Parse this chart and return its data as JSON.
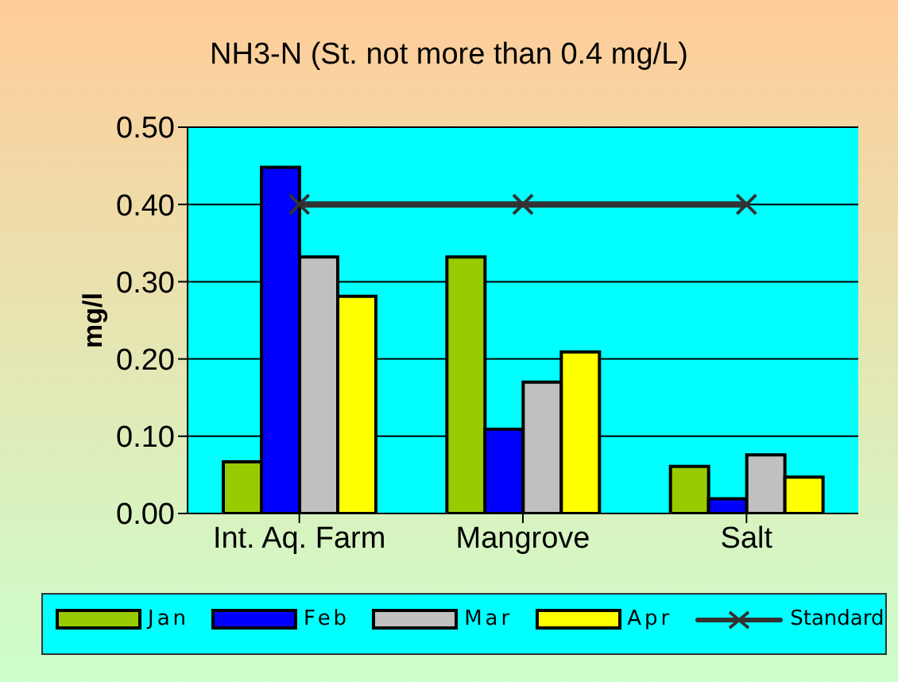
{
  "chart_data": {
    "type": "bar",
    "title": "NH3-N (St. not more than 0.4 mg/L)",
    "ylabel": "mg/l",
    "categories": [
      "Int. Aq. Farm",
      "Mangrove",
      "Salt"
    ],
    "series": [
      {
        "name": "Jan",
        "color": "#99cc00",
        "values": [
          0.067,
          0.332,
          0.061
        ]
      },
      {
        "name": "Feb",
        "color": "#0000ff",
        "values": [
          0.448,
          0.109,
          0.019
        ]
      },
      {
        "name": "Mar",
        "color": "#c0c0c0",
        "values": [
          0.332,
          0.17,
          0.076
        ]
      },
      {
        "name": "Apr",
        "color": "#ffff00",
        "values": [
          0.281,
          0.209,
          0.047
        ]
      },
      {
        "name": "Standard",
        "type": "line",
        "color": "#333333",
        "marker": "cross",
        "values": [
          0.4,
          0.4,
          0.4
        ]
      }
    ],
    "ylim": [
      0,
      0.5
    ],
    "yticks": [
      {
        "value": 0,
        "label": "0.00"
      },
      {
        "value": 0.1,
        "label": "0.10"
      },
      {
        "value": 0.2,
        "label": "0.20"
      },
      {
        "value": 0.3,
        "label": "0.30"
      },
      {
        "value": 0.4,
        "label": "0.40"
      },
      {
        "value": 0.5,
        "label": "0.50"
      }
    ],
    "grid": "y",
    "legend": "bottom"
  }
}
